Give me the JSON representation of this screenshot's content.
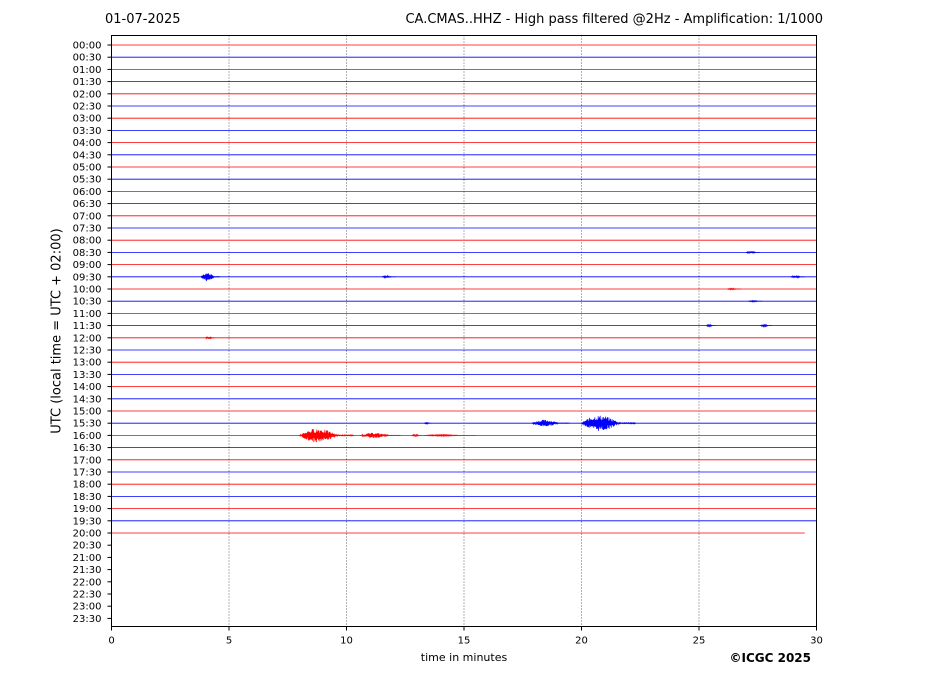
{
  "header": {
    "date": "01-07-2025",
    "title": "CA.CMAS..HHZ - High pass filtered @2Hz - Amplification: 1/1000"
  },
  "footer": {
    "copyright": "©ICGC 2025"
  },
  "chart_data": {
    "type": "line",
    "subtype": "helicorder",
    "xlabel": "time in minutes",
    "ylabel": "UTC (local time = UTC + 02:00)",
    "xlim": [
      0,
      30
    ],
    "x_ticks": [
      "0",
      "5",
      "10",
      "15",
      "20",
      "25",
      "30"
    ],
    "y_ticks": [
      "00:00",
      "00:30",
      "01:00",
      "01:30",
      "02:00",
      "02:30",
      "03:00",
      "03:30",
      "04:00",
      "04:30",
      "05:00",
      "05:30",
      "06:00",
      "06:30",
      "07:00",
      "07:30",
      "08:00",
      "08:30",
      "09:00",
      "09:30",
      "10:00",
      "10:30",
      "11:00",
      "11:30",
      "12:00",
      "12:30",
      "13:00",
      "13:30",
      "14:00",
      "14:30",
      "15:00",
      "15:30",
      "16:00",
      "16:30",
      "17:00",
      "17:30",
      "18:00",
      "18:30",
      "19:00",
      "19:30",
      "20:00",
      "20:30",
      "21:00",
      "21:30",
      "22:00",
      "22:30",
      "23:00",
      "23:30"
    ],
    "trace_end": {
      "row": "20:00",
      "minute": 29.5
    },
    "grid": "vertical dotted lines at 5-minute intervals",
    "trace_colors": [
      "#ff0000",
      "#0000ff"
    ],
    "events": [
      {
        "row": "08:30",
        "start": 27.0,
        "end": 27.6,
        "amplitude": 0.3
      },
      {
        "row": "09:30",
        "start": 3.8,
        "end": 4.6,
        "amplitude": 1.0
      },
      {
        "row": "09:30",
        "start": 11.5,
        "end": 12.1,
        "amplitude": 0.2
      },
      {
        "row": "09:30",
        "start": 28.9,
        "end": 29.5,
        "amplitude": 0.25
      },
      {
        "row": "10:00",
        "start": 26.2,
        "end": 26.8,
        "amplitude": 0.15
      },
      {
        "row": "10:30",
        "start": 27.1,
        "end": 27.7,
        "amplitude": 0.15
      },
      {
        "row": "11:30",
        "start": 25.3,
        "end": 25.7,
        "amplitude": 0.2
      },
      {
        "row": "11:30",
        "start": 27.6,
        "end": 28.1,
        "amplitude": 0.25
      },
      {
        "row": "12:00",
        "start": 4.0,
        "end": 4.4,
        "amplitude": 0.3
      },
      {
        "row": "15:30",
        "start": 13.3,
        "end": 13.6,
        "amplitude": 0.2
      },
      {
        "row": "15:30",
        "start": 17.9,
        "end": 19.5,
        "amplitude": 0.8
      },
      {
        "row": "15:30",
        "start": 20.0,
        "end": 22.3,
        "amplitude": 1.8
      },
      {
        "row": "16:00",
        "start": 8.0,
        "end": 10.3,
        "amplitude": 1.6
      },
      {
        "row": "16:00",
        "start": 10.6,
        "end": 12.3,
        "amplitude": 0.6
      },
      {
        "row": "16:00",
        "start": 12.8,
        "end": 13.2,
        "amplitude": 0.3
      },
      {
        "row": "16:00",
        "start": 13.3,
        "end": 15.5,
        "amplitude": 0.15
      }
    ]
  }
}
